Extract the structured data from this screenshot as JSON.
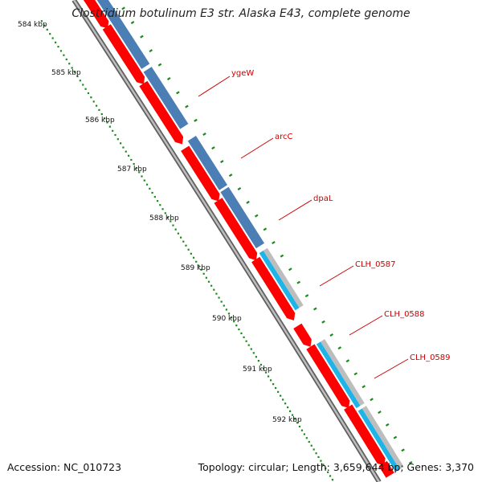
{
  "title": "Clostridium botulinum E3 str. Alaska E43, complete genome",
  "accession": "Accession: NC_010723",
  "topology": "Topology: circular; Length: 3,659,644 bp; Genes: 3,370",
  "colors": {
    "backbone": "#7a7a7a",
    "forward_cds": "#4a7eb5",
    "forward_cds_alt": "#1fb4e8",
    "reverse_cds": "#ff0000",
    "other_feature": "#bdbdbd",
    "ticks": "#1a8a1a",
    "label": "#cc0000"
  },
  "ticks": [
    "584 kbp",
    "585 kbp",
    "586 kbp",
    "587 kbp",
    "588 kbp",
    "589 kbp",
    "590 kbp",
    "591 kbp",
    "592 kbp"
  ],
  "gene_labels": [
    "ygeW",
    "arcC",
    "dpaL",
    "CLH_0587",
    "CLH_0588",
    "CLH_0589"
  ]
}
